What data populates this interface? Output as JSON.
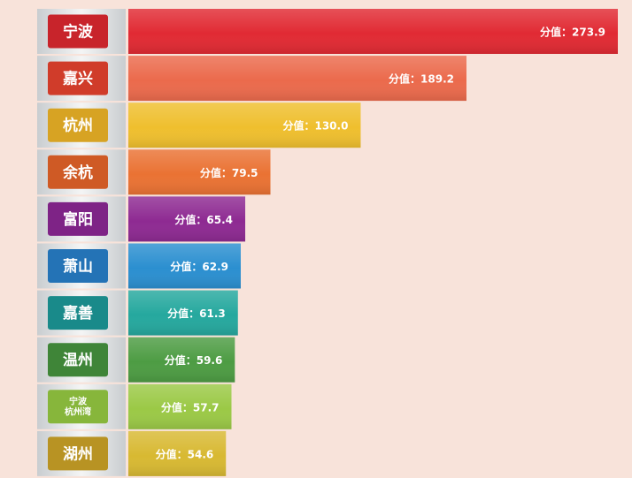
{
  "chart_data": {
    "type": "bar",
    "orientation": "horizontal",
    "categories": [
      "宁波",
      "嘉兴",
      "杭州",
      "余杭",
      "富阳",
      "萧山",
      "嘉善",
      "温州",
      "宁波杭州湾",
      "湖州"
    ],
    "value_prefix": "分值：",
    "values": [
      273.9,
      189.2,
      130.0,
      79.5,
      65.4,
      62.9,
      61.3,
      59.6,
      57.7,
      54.6
    ],
    "value_labels": [
      "273.9",
      "189.2",
      "130.0",
      "79.5",
      "65.4",
      "62.9",
      "61.3",
      "59.6",
      "57.7",
      "54.6"
    ],
    "category_label_lines": [
      [
        "宁波"
      ],
      [
        "嘉兴"
      ],
      [
        "杭州"
      ],
      [
        "余杭"
      ],
      [
        "富阳"
      ],
      [
        "萧山"
      ],
      [
        "嘉善"
      ],
      [
        "温州"
      ],
      [
        "宁波",
        "杭州湾"
      ],
      [
        "湖州"
      ]
    ],
    "bar_colors": [
      "#e12a33",
      "#eb6a4c",
      "#efbf2e",
      "#ea7233",
      "#8e2a92",
      "#2b8fd0",
      "#25a89e",
      "#4d9c43",
      "#9bc946",
      "#d8b932"
    ],
    "label_colors": [
      "#c8242b",
      "#d03c2a",
      "#d7a323",
      "#cf5a25",
      "#7e2386",
      "#2473b6",
      "#198a8a",
      "#3f8538",
      "#87b63b",
      "#b89323"
    ],
    "xlim": [
      0,
      280
    ],
    "grid": false,
    "legend": "none"
  }
}
